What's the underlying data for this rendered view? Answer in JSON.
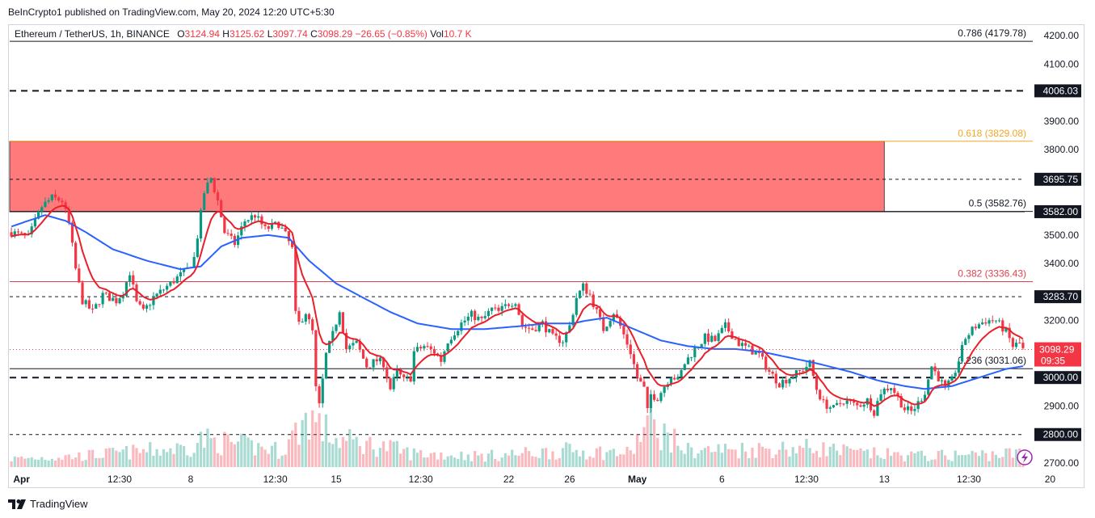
{
  "header": {
    "publisher": "BeInCrypto1 published on TradingView.com, May 20, 2024 12:20 UTC+5:30"
  },
  "legend": {
    "symbol": "Ethereum / TetherUS, 1h, BINANCE",
    "o_label": "O",
    "o": "3124.94",
    "h_label": "H",
    "h": "3125.62",
    "l_label": "L",
    "l": "3097.74",
    "c_label": "C",
    "c": "3098.29",
    "change": "−26.65 (−0.85%)",
    "vol_label": "Vol",
    "vol": "10.7 K"
  },
  "footer": {
    "brand": "TradingView"
  },
  "colors": {
    "up": "#089981",
    "down": "#f23645",
    "ema_fast": "#e8202a",
    "ema_slow": "#2962ff",
    "zone": "#ff7a7a",
    "fib_618": "#f5a623",
    "fib_382": "#e0424b"
  },
  "chart_data": {
    "type": "line",
    "title": "",
    "xlabel": "",
    "ylabel": "",
    "ylim": [
      2650,
      4260
    ],
    "price_scale_ticks": [
      "4200.00",
      "4100.00",
      "3900.00",
      "3800.00",
      "3500.00",
      "3400.00",
      "3200.00",
      "2900.00",
      "2700.00"
    ],
    "time_ticks": [
      "Apr",
      "12:30",
      "8",
      "12:30",
      "15",
      "12:30",
      "22",
      "26",
      "May",
      "6",
      "12:30",
      "13",
      "12:30",
      "20"
    ],
    "time_tick_index": [
      3,
      32,
      53,
      78,
      96,
      121,
      147,
      165,
      185,
      210,
      235,
      258,
      283,
      307
    ],
    "last_price": "3098.29",
    "countdown": "09:35",
    "levels": [
      {
        "label": "4006.03",
        "price": 4006.03,
        "style": "dashed"
      },
      {
        "label": "3695.75",
        "price": 3695.75,
        "style": "dashed"
      },
      {
        "label": "3582.00",
        "price": 3582.0,
        "style": "solid"
      },
      {
        "label": "3283.70",
        "price": 3283.7,
        "style": "dashed"
      },
      {
        "label": "3000.00",
        "price": 3000.0,
        "style": "dashed"
      },
      {
        "label": "2800.00",
        "price": 2800.0,
        "style": "dashed"
      }
    ],
    "fib": [
      {
        "label": "0.786 (4179.78)",
        "price": 4179.78
      },
      {
        "label": "0.618 (3829.08)",
        "price": 3829.08
      },
      {
        "label": "0.5 (3582.76)",
        "price": 3582.76
      },
      {
        "label": "0.382 (3336.43)",
        "price": 3336.43
      },
      {
        "label": "0.236 (3031.06)",
        "price": 3031.06
      }
    ],
    "resistance_zone": {
      "top": 3829.08,
      "bottom": 3582.0,
      "start_index": 0,
      "end_index": 258
    },
    "price_anchors": [
      [
        0,
        3510
      ],
      [
        5,
        3490
      ],
      [
        9,
        3600
      ],
      [
        12,
        3630
      ],
      [
        15,
        3620
      ],
      [
        17,
        3540
      ],
      [
        19,
        3380
      ],
      [
        21,
        3270
      ],
      [
        24,
        3230
      ],
      [
        27,
        3290
      ],
      [
        31,
        3270
      ],
      [
        33,
        3300
      ],
      [
        35,
        3370
      ],
      [
        37,
        3260
      ],
      [
        39,
        3230
      ],
      [
        42,
        3280
      ],
      [
        46,
        3320
      ],
      [
        49,
        3350
      ],
      [
        52,
        3380
      ],
      [
        54,
        3420
      ],
      [
        57,
        3650
      ],
      [
        59,
        3700
      ],
      [
        61,
        3620
      ],
      [
        63,
        3510
      ],
      [
        66,
        3470
      ],
      [
        69,
        3550
      ],
      [
        72,
        3570
      ],
      [
        75,
        3520
      ],
      [
        79,
        3540
      ],
      [
        81,
        3500
      ],
      [
        83,
        3450
      ],
      [
        84,
        3220
      ],
      [
        85,
        3190
      ],
      [
        87,
        3230
      ],
      [
        89,
        3160
      ],
      [
        90,
        2960
      ],
      [
        91,
        2900
      ],
      [
        93,
        3080
      ],
      [
        95,
        3150
      ],
      [
        97,
        3240
      ],
      [
        99,
        3100
      ],
      [
        102,
        3120
      ],
      [
        105,
        3040
      ],
      [
        108,
        3060
      ],
      [
        110,
        3050
      ],
      [
        112,
        2960
      ],
      [
        114,
        3020
      ],
      [
        116,
        2990
      ],
      [
        118,
        3000
      ],
      [
        119,
        3090
      ],
      [
        122,
        3110
      ],
      [
        125,
        3090
      ],
      [
        127,
        3060
      ],
      [
        129,
        3130
      ],
      [
        131,
        3160
      ],
      [
        133,
        3190
      ],
      [
        136,
        3220
      ],
      [
        139,
        3200
      ],
      [
        142,
        3240
      ],
      [
        144,
        3230
      ],
      [
        147,
        3260
      ],
      [
        149,
        3270
      ],
      [
        151,
        3180
      ],
      [
        154,
        3170
      ],
      [
        157,
        3190
      ],
      [
        160,
        3140
      ],
      [
        163,
        3130
      ],
      [
        165,
        3180
      ],
      [
        167,
        3280
      ],
      [
        169,
        3320
      ],
      [
        171,
        3290
      ],
      [
        173,
        3230
      ],
      [
        175,
        3170
      ],
      [
        178,
        3230
      ],
      [
        180,
        3180
      ],
      [
        183,
        3090
      ],
      [
        185,
        3000
      ],
      [
        187,
        2960
      ],
      [
        188,
        2880
      ],
      [
        189,
        2940
      ],
      [
        191,
        2930
      ],
      [
        193,
        2970
      ],
      [
        195,
        3010
      ],
      [
        197,
        2990
      ],
      [
        199,
        3050
      ],
      [
        202,
        3100
      ],
      [
        205,
        3140
      ],
      [
        208,
        3130
      ],
      [
        211,
        3180
      ],
      [
        213,
        3150
      ],
      [
        215,
        3120
      ],
      [
        218,
        3100
      ],
      [
        221,
        3080
      ],
      [
        224,
        3020
      ],
      [
        227,
        2980
      ],
      [
        230,
        3000
      ],
      [
        233,
        3020
      ],
      [
        236,
        3050
      ],
      [
        238,
        2960
      ],
      [
        240,
        2910
      ],
      [
        243,
        2890
      ],
      [
        246,
        2920
      ],
      [
        250,
        2900
      ],
      [
        253,
        2920
      ],
      [
        255,
        2880
      ],
      [
        257,
        2950
      ],
      [
        260,
        2970
      ],
      [
        262,
        2930
      ],
      [
        264,
        2890
      ],
      [
        266,
        2880
      ],
      [
        268,
        2910
      ],
      [
        270,
        2950
      ],
      [
        272,
        3040
      ],
      [
        274,
        3000
      ],
      [
        276,
        2960
      ],
      [
        278,
        2990
      ],
      [
        280,
        3060
      ],
      [
        282,
        3140
      ],
      [
        285,
        3180
      ],
      [
        288,
        3200
      ],
      [
        291,
        3200
      ],
      [
        294,
        3160
      ],
      [
        296,
        3110
      ],
      [
        298,
        3120
      ],
      [
        299,
        3098.29
      ]
    ],
    "ema_slow_anchors": [
      [
        0,
        3530
      ],
      [
        10,
        3570
      ],
      [
        16,
        3550
      ],
      [
        22,
        3510
      ],
      [
        30,
        3450
      ],
      [
        40,
        3410
      ],
      [
        50,
        3380
      ],
      [
        56,
        3390
      ],
      [
        62,
        3460
      ],
      [
        68,
        3490
      ],
      [
        76,
        3500
      ],
      [
        82,
        3490
      ],
      [
        88,
        3410
      ],
      [
        96,
        3330
      ],
      [
        104,
        3280
      ],
      [
        112,
        3230
      ],
      [
        120,
        3190
      ],
      [
        130,
        3170
      ],
      [
        140,
        3170
      ],
      [
        150,
        3180
      ],
      [
        158,
        3190
      ],
      [
        166,
        3190
      ],
      [
        170,
        3200
      ],
      [
        176,
        3210
      ],
      [
        184,
        3170
      ],
      [
        192,
        3130
      ],
      [
        200,
        3110
      ],
      [
        208,
        3100
      ],
      [
        214,
        3100
      ],
      [
        222,
        3090
      ],
      [
        230,
        3070
      ],
      [
        238,
        3050
      ],
      [
        248,
        3020
      ],
      [
        256,
        2990
      ],
      [
        264,
        2970
      ],
      [
        270,
        2960
      ],
      [
        278,
        2970
      ],
      [
        286,
        3000
      ],
      [
        294,
        3030
      ],
      [
        299,
        3040
      ]
    ],
    "volume_anchors": [
      [
        0,
        0.15
      ],
      [
        20,
        0.2
      ],
      [
        52,
        0.35
      ],
      [
        56,
        0.5
      ],
      [
        80,
        0.3
      ],
      [
        88,
        0.95
      ],
      [
        91,
        0.75
      ],
      [
        96,
        0.5
      ],
      [
        112,
        0.35
      ],
      [
        118,
        0.25
      ],
      [
        140,
        0.2
      ],
      [
        165,
        0.3
      ],
      [
        183,
        0.25
      ],
      [
        188,
        0.8
      ],
      [
        200,
        0.3
      ],
      [
        238,
        0.35
      ],
      [
        250,
        0.25
      ],
      [
        270,
        0.2
      ],
      [
        299,
        0.25
      ]
    ]
  }
}
